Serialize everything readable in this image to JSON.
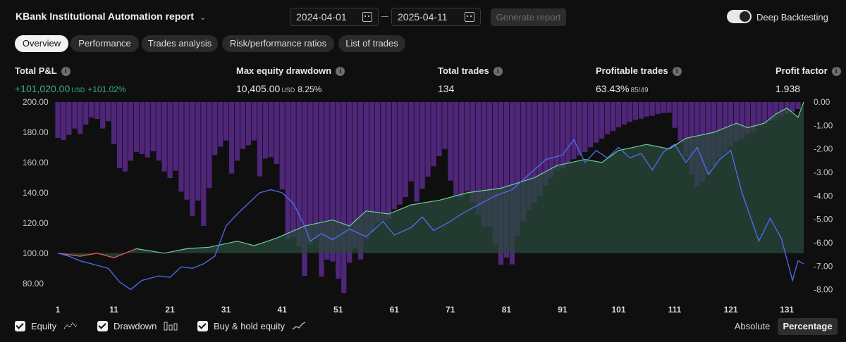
{
  "header": {
    "report_title": "KBank Institutional Automation report",
    "date_from": "2024-04-01",
    "date_to": "2025-04-11",
    "generate_label": "Generate report",
    "deep_backtesting_label": "Deep Backtesting",
    "deep_backtesting_on": true
  },
  "tabs": [
    "Overview",
    "Performance",
    "Trades analysis",
    "Risk/performance ratios",
    "List of trades"
  ],
  "active_tab": "Overview",
  "stats": {
    "total_pnl": {
      "label": "Total P&L",
      "value": "+101,020.00",
      "unit": "USD",
      "pct": "+101.02%"
    },
    "max_drawdown": {
      "label": "Max equity drawdown",
      "value": "10,405.00",
      "unit": "USD",
      "pct": "8.25%"
    },
    "total_trades": {
      "label": "Total trades",
      "value": "134"
    },
    "profitable_trades": {
      "label": "Profitable trades",
      "value": "63.43%",
      "ratio": "85/49"
    },
    "profit_factor": {
      "label": "Profit factor",
      "value": "1.938"
    }
  },
  "legend": {
    "equity_label": "Equity",
    "drawdown_label": "Drawdown",
    "buyhold_label": "Buy & hold equity",
    "mode_absolute": "Absolute",
    "mode_percentage": "Percentage",
    "active_mode": "Percentage"
  },
  "colors": {
    "equity_line": "#6fcf97",
    "equity_area": "#2a4a3c",
    "equity_negative": "#e05252",
    "drawdown_bar": "#5b2a8c",
    "buyhold_line": "#4f6ef7"
  },
  "chart_data": {
    "type": "line",
    "xticks": [
      "1",
      "11",
      "21",
      "31",
      "41",
      "51",
      "61",
      "71",
      "81",
      "91",
      "101",
      "111",
      "121",
      "131"
    ],
    "y_left_ticks": [
      "200.00",
      "180.00",
      "160.00",
      "140.00",
      "120.00",
      "100.00",
      "80.00"
    ],
    "y_right_ticks": [
      "0.00",
      "-1.00",
      "-2.00",
      "-3.00",
      "-4.00",
      "-5.00",
      "-6.00",
      "-7.00",
      "-8.00"
    ],
    "ylim_left": [
      72,
      200
    ],
    "ylim_right": [
      -8.25,
      0
    ],
    "xlim": [
      1,
      134
    ],
    "series": [
      {
        "name": "Equity",
        "axis": "left",
        "points": [
          [
            1,
            100
          ],
          [
            5,
            98
          ],
          [
            8,
            100
          ],
          [
            11,
            97
          ],
          [
            15,
            103
          ],
          [
            20,
            100
          ],
          [
            24,
            103
          ],
          [
            28,
            104
          ],
          [
            33,
            108
          ],
          [
            36,
            105
          ],
          [
            40,
            110
          ],
          [
            45,
            118
          ],
          [
            50,
            122
          ],
          [
            53,
            118
          ],
          [
            56,
            128
          ],
          [
            60,
            126
          ],
          [
            64,
            132
          ],
          [
            69,
            135
          ],
          [
            74,
            140
          ],
          [
            80,
            143
          ],
          [
            86,
            150
          ],
          [
            90,
            158
          ],
          [
            95,
            162
          ],
          [
            98,
            160
          ],
          [
            101,
            168
          ],
          [
            106,
            172
          ],
          [
            110,
            169
          ],
          [
            113,
            176
          ],
          [
            118,
            180
          ],
          [
            122,
            186
          ],
          [
            124,
            183
          ],
          [
            127,
            186
          ],
          [
            129,
            192
          ],
          [
            131,
            196
          ],
          [
            133,
            190
          ],
          [
            134,
            200
          ]
        ]
      },
      {
        "name": "Buy & hold equity",
        "axis": "left",
        "points": [
          [
            1,
            100
          ],
          [
            3,
            98
          ],
          [
            5,
            95
          ],
          [
            7,
            93
          ],
          [
            10,
            90
          ],
          [
            12,
            81
          ],
          [
            14,
            76
          ],
          [
            16,
            82
          ],
          [
            19,
            85
          ],
          [
            21,
            84
          ],
          [
            23,
            91
          ],
          [
            25,
            90
          ],
          [
            27,
            93
          ],
          [
            29,
            98
          ],
          [
            31,
            118
          ],
          [
            33,
            126
          ],
          [
            35,
            133
          ],
          [
            37,
            140
          ],
          [
            39,
            142
          ],
          [
            41,
            140
          ],
          [
            43,
            133
          ],
          [
            45,
            118
          ],
          [
            46,
            108
          ],
          [
            48,
            113
          ],
          [
            50,
            109
          ],
          [
            53,
            116
          ],
          [
            56,
            111
          ],
          [
            59,
            121
          ],
          [
            61,
            112
          ],
          [
            64,
            117
          ],
          [
            66,
            124
          ],
          [
            68,
            115
          ],
          [
            71,
            121
          ],
          [
            73,
            126
          ],
          [
            76,
            132
          ],
          [
            79,
            138
          ],
          [
            82,
            142
          ],
          [
            85,
            152
          ],
          [
            88,
            162
          ],
          [
            91,
            165
          ],
          [
            93,
            175
          ],
          [
            95,
            160
          ],
          [
            97,
            168
          ],
          [
            99,
            163
          ],
          [
            101,
            170
          ],
          [
            103,
            163
          ],
          [
            105,
            166
          ],
          [
            107,
            155
          ],
          [
            109,
            167
          ],
          [
            111,
            172
          ],
          [
            113,
            160
          ],
          [
            115,
            170
          ],
          [
            117,
            152
          ],
          [
            119,
            162
          ],
          [
            121,
            168
          ],
          [
            123,
            140
          ],
          [
            126,
            108
          ],
          [
            128,
            123
          ],
          [
            130,
            110
          ],
          [
            132,
            82
          ],
          [
            133,
            95
          ],
          [
            134,
            93
          ]
        ]
      }
    ],
    "drawdown_bars": [
      -1.53,
      -1.62,
      -1.4,
      -1.13,
      -1.36,
      -0.96,
      -0.66,
      -0.72,
      -1.13,
      -0.82,
      -1.8,
      -2.82,
      -2.96,
      -2.5,
      -2.13,
      -2.22,
      -2.36,
      -2.1,
      -2.5,
      -2.96,
      -3.24,
      -2.93,
      -3.82,
      -4.16,
      -4.85,
      -4.2,
      -5.28,
      -3.67,
      -2.26,
      -1.9,
      -1.64,
      -3.05,
      -2.5,
      -2.0,
      -1.84,
      -1.64,
      -3.17,
      -2.41,
      -2.35,
      -2.64,
      -3.73,
      -5.86,
      -5.76,
      -6.15,
      -7.41,
      -6.07,
      -5.84,
      -7.44,
      -6.72,
      -6.8,
      -7.53,
      -8.14,
      -6.85,
      -6.24,
      -6.71,
      -5.85,
      -5.56,
      -5.12,
      -5.05,
      -5.0,
      -4.57,
      -4.37,
      -4.05,
      -3.38,
      -4.25,
      -3.7,
      -3.18,
      -2.74,
      -2.31,
      -2.0,
      -3.35,
      -4.0,
      -4.07,
      -3.82,
      -4.27,
      -4.79,
      -5.32,
      -5.32,
      -6.05,
      -6.94,
      -6.63,
      -6.92,
      -5.7,
      -5.06,
      -4.6,
      -4.3,
      -4.0,
      -3.56,
      -3.21,
      -2.93,
      -2.84,
      -2.64,
      -2.44,
      -2.28,
      -2.13,
      -1.93,
      -1.73,
      -1.56,
      -1.37,
      -1.24,
      -1.07,
      -0.96,
      -0.85,
      -0.76,
      -0.71,
      -0.62,
      -0.59,
      -0.51,
      -0.47,
      -0.45,
      -1.1,
      -1.65,
      -2.33,
      -3.08,
      -3.62,
      -3.37,
      -3.08,
      -2.74,
      -2.39,
      -2.11,
      -1.89,
      -1.71,
      -1.57,
      -1.38,
      -1.25,
      -1.05,
      -0.91,
      -0.81,
      -0.75,
      -0.63,
      -0.5,
      -0.41,
      -0.3,
      0.0
    ]
  }
}
